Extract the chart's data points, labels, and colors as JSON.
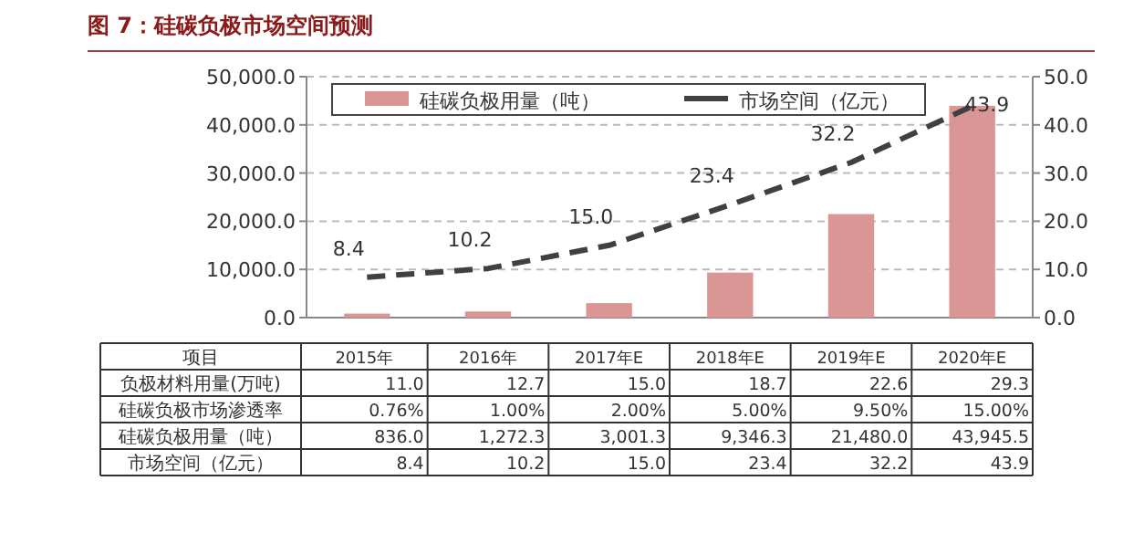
{
  "chart_data": {
    "type": "bar",
    "title": "图 7：硅碳负极市场空间预测",
    "categories": [
      "2015年",
      "2016年",
      "2017年E",
      "2018年E",
      "2019年E",
      "2020年E"
    ],
    "series": [
      {
        "name": "硅碳负极用量（吨）",
        "color": "#d99694",
        "values": [
          836.0,
          1272.3,
          3001.3,
          9346.3,
          21480.0,
          43945.5
        ],
        "value_labels": [
          "836.0",
          "1,272.3",
          "3,001.3",
          "9,346.3",
          "21,480.0",
          "43,945.5"
        ]
      },
      {
        "name": "市场空间（亿元）",
        "type": "line",
        "axis": "y2",
        "color": "#404040",
        "line_style": "dashed",
        "values": [
          8.4,
          10.2,
          15.0,
          23.4,
          32.2,
          43.9
        ],
        "value_labels": [
          "8.4",
          "10.2",
          "15.0",
          "23.4",
          "32.2",
          "43.9"
        ]
      }
    ],
    "ylim": [
      0,
      50000
    ],
    "yticks": [
      {
        "value": 0,
        "label": "0.0"
      },
      {
        "value": 10000,
        "label": "10,000.0"
      },
      {
        "value": 20000,
        "label": "20,000.0"
      },
      {
        "value": 30000,
        "label": "30,000.0"
      },
      {
        "value": 40000,
        "label": "40,000.0"
      },
      {
        "value": 50000,
        "label": "50,000.0"
      }
    ],
    "y2lim": [
      0,
      50
    ],
    "y2ticks": [
      {
        "value": 0,
        "label": "0.0"
      },
      {
        "value": 10,
        "label": "10.0"
      },
      {
        "value": 20,
        "label": "20.0"
      },
      {
        "value": 30,
        "label": "30.0"
      },
      {
        "value": 40,
        "label": "40.0"
      },
      {
        "value": 50,
        "label": "50.0"
      }
    ],
    "grid": "y",
    "legend": "top",
    "data_labels": true,
    "annotations": [
      "项目",
      "负极材料用量(万吨)",
      "11.0",
      "12.7",
      "15.0",
      "18.7",
      "22.6",
      "29.3",
      "硅碳负极市场渗透率",
      "0.76%",
      "1.00%",
      "2.00%",
      "5.00%",
      "9.50%",
      "15.00%"
    ]
  }
}
